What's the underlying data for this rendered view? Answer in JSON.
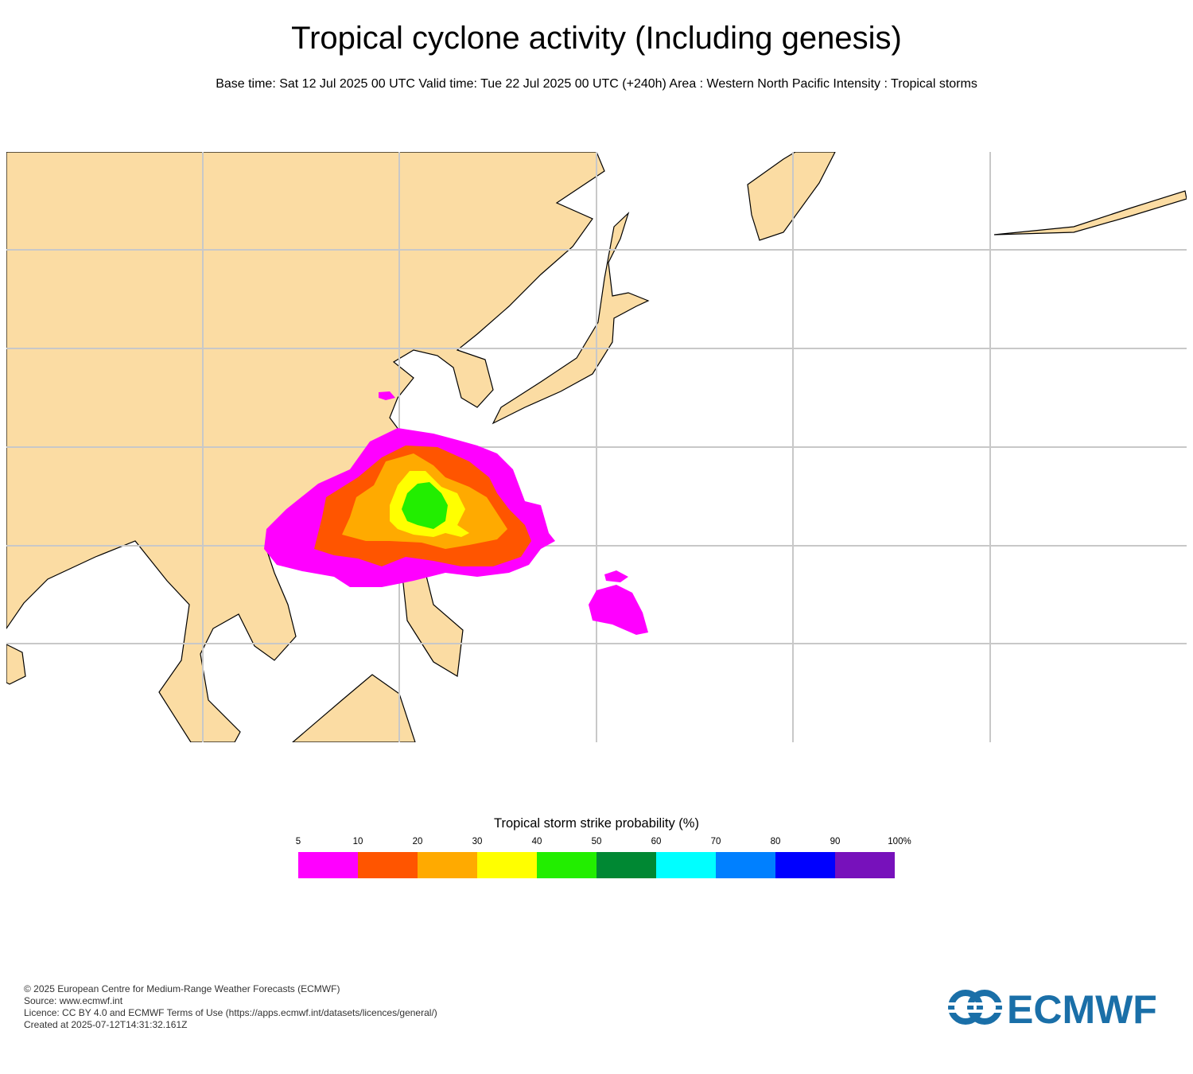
{
  "header": {
    "title": "Tropical cyclone activity (Including genesis)",
    "subtitle": "Base time: Sat 12 Jul 2025 00 UTC Valid time: Tue 22 Jul 2025 00 UTC (+240h) Area : Western North Pacific Intensity : Tropical storms"
  },
  "legend": {
    "title": "Tropical storm strike probability (%)",
    "ticks": [
      "5",
      "10",
      "20",
      "30",
      "40",
      "50",
      "60",
      "70",
      "80",
      "90",
      "100%"
    ],
    "colors": [
      "#ff00ff",
      "#ff5500",
      "#ffaa00",
      "#ffff00",
      "#22ee00",
      "#008833",
      "#00ffff",
      "#0080ff",
      "#0000ff",
      "#7711bb"
    ]
  },
  "colors": {
    "land": "#fbdca3",
    "sea": "#ffffff",
    "grid": "#c8c8c8"
  },
  "footer": {
    "copyright": "© 2025 European Centre for Medium-Range Weather Forecasts (ECMWF)",
    "source": "Source: www.ecmwf.int",
    "licence": "Licence: CC BY 4.0 and ECMWF Terms of Use (https://apps.ecmwf.int/datasets/licences/general/)",
    "created": "Created at 2025-07-12T14:31:32.161Z"
  },
  "logo": {
    "text": "ECMWF"
  }
}
